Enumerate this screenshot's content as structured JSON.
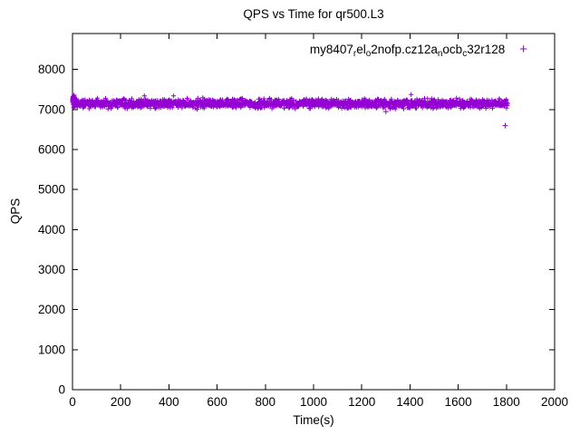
{
  "title": "QPS vs Time for qr500.L3",
  "axes": {
    "xlabel": "Time(s)",
    "ylabel": "QPS"
  },
  "legend": {
    "marker": "+",
    "segments": [
      {
        "text": "my8407"
      },
      {
        "text": "r",
        "sub": true
      },
      {
        "text": "el"
      },
      {
        "text": "o",
        "sub": true
      },
      {
        "text": "2nofp.cz12a"
      },
      {
        "text": "n",
        "sub": true
      },
      {
        "text": "ocb"
      },
      {
        "text": "c",
        "sub": true
      },
      {
        "text": "32r128"
      }
    ]
  },
  "chart_data": {
    "type": "scatter",
    "title": "QPS vs Time for qr500.L3",
    "xlabel": "Time(s)",
    "ylabel": "QPS",
    "xlim": [
      0,
      2000
    ],
    "ylim": [
      0,
      8900
    ],
    "xticks": [
      0,
      200,
      400,
      600,
      800,
      1000,
      1200,
      1400,
      1600,
      1800,
      2000
    ],
    "yticks": [
      0,
      1000,
      2000,
      3000,
      4000,
      5000,
      6000,
      7000,
      8000
    ],
    "grid": false,
    "legend_position": "top-right-inside",
    "series": [
      {
        "name": "my8407_rel_o2nofp.cz12a_nocb_c32r128",
        "marker": "+",
        "color": "#9400D3",
        "band": {
          "x_start": 0,
          "x_end": 1805,
          "n_points": 1800,
          "y_mean": 7150,
          "y_jitter": 160,
          "seed": 42
        },
        "start_spike": {
          "x_start": 0,
          "x_end": 8,
          "n_points": 22,
          "y_min": 7200,
          "y_max": 7360
        },
        "outliers": [
          [
            1300,
            6950
          ],
          [
            1795,
            6600
          ]
        ]
      }
    ]
  }
}
